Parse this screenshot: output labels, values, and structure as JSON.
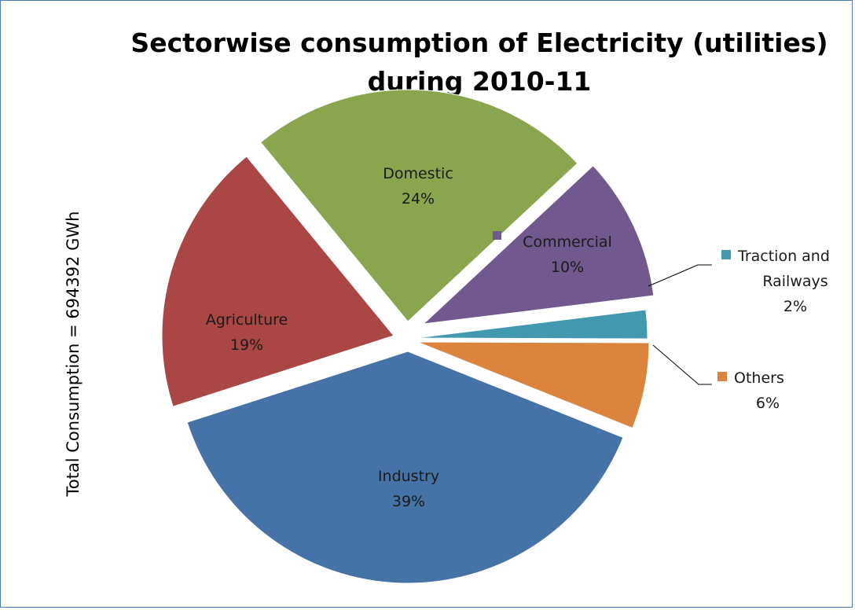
{
  "chart_data": {
    "type": "pie",
    "title_line1": "Sectorwise consumption of Electricity (utilities)",
    "title_line2": "during 2010-11",
    "side_label": "Total Consumption = 694392 GWh",
    "slices": [
      {
        "name": "Industry",
        "value": 39,
        "label": "39%",
        "color": "#4572a7"
      },
      {
        "name": "Agriculture",
        "value": 19,
        "label": "19%",
        "color": "#aa4643"
      },
      {
        "name": "Domestic",
        "value": 24,
        "label": "24%",
        "color": "#89a54e"
      },
      {
        "name": "Commercial",
        "value": 10,
        "label": "10%",
        "color": "#71588f"
      },
      {
        "name": "Traction and Railways",
        "name_lines": [
          "Traction and",
          "Railways"
        ],
        "value": 2,
        "label": "2%",
        "color": "#4198af"
      },
      {
        "name": "Others",
        "value": 6,
        "label": "6%",
        "color": "#db843d"
      }
    ]
  }
}
